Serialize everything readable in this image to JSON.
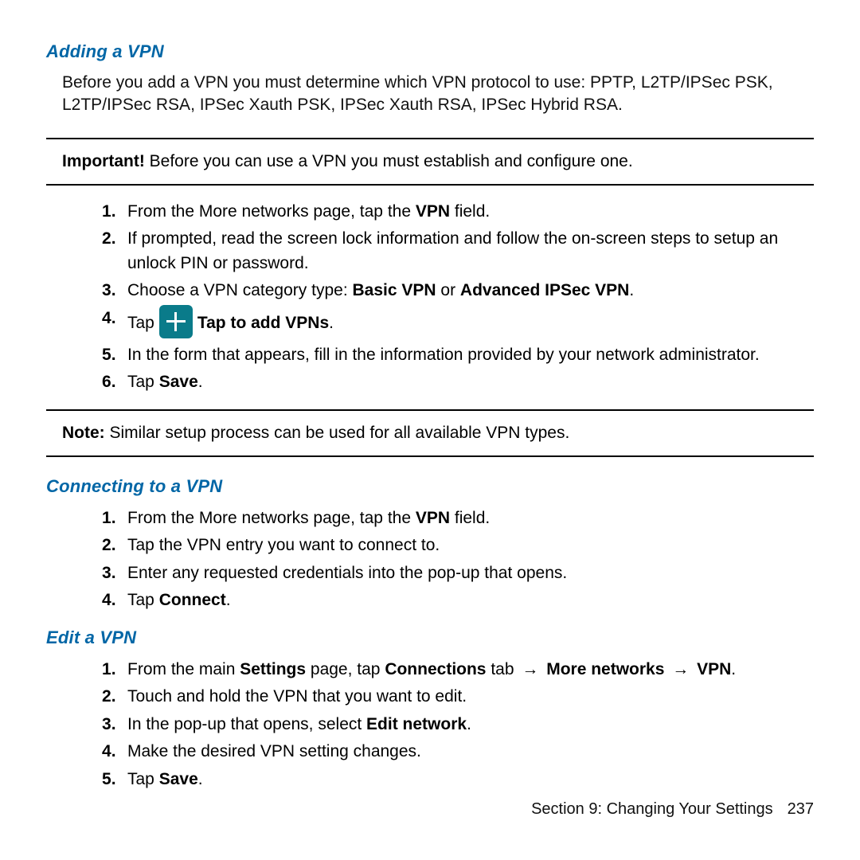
{
  "colors": {
    "heading": "#0066a6",
    "iconBg": "#0a7b8a",
    "iconFg": "#ffffff",
    "text": "#000000",
    "rule": "#000000"
  },
  "typography": {
    "headingSize": 22,
    "bodySize": 21,
    "footerSize": 20,
    "fontFamily": "Arial"
  },
  "adding": {
    "heading": "Adding a VPN",
    "intro": "Before you add a VPN you must determine which VPN protocol to use: PPTP, L2TP/IPSec PSK, L2TP/IPSec RSA, IPSec Xauth PSK, IPSec Xauth RSA, IPSec Hybrid RSA.",
    "importantLabel": "Important!",
    "importantText": " Before you can use a VPN you must establish and configure one.",
    "steps": {
      "s1_a": "From the More networks page, tap the ",
      "s1_b": "VPN",
      "s1_c": " field.",
      "s2": "If prompted, read the screen lock information and follow the on-screen steps to setup an unlock PIN or password.",
      "s3_a": "Choose a VPN category type: ",
      "s3_b": "Basic VPN",
      "s3_c": " or ",
      "s3_d": "Advanced IPSec VPN",
      "s3_e": ".",
      "s4_a": "Tap ",
      "s4_label": "Tap to add VPNs",
      "s4_b": ".",
      "s5": "In the form that appears, fill in the information provided by your network administrator.",
      "s6_a": "Tap ",
      "s6_b": "Save",
      "s6_c": "."
    },
    "noteLabel": "Note:",
    "noteText": " Similar setup process can be used for all available VPN types."
  },
  "connecting": {
    "heading": "Connecting to a VPN",
    "s1_a": "From the More networks page, tap the ",
    "s1_b": "VPN",
    "s1_c": " field.",
    "s2": "Tap the VPN entry you want to connect to.",
    "s3": "Enter any requested credentials into the pop-up that opens.",
    "s4_a": "Tap ",
    "s4_b": "Connect",
    "s4_c": "."
  },
  "edit": {
    "heading": "Edit a VPN",
    "s1_a": "From the main ",
    "s1_b": "Settings",
    "s1_c": " page, tap ",
    "s1_d": "Connections",
    "s1_e": " tab ",
    "arrow": "→",
    "s1_f": "More networks",
    "s1_g": "VPN",
    "s1_h": ".",
    "s2": "Touch and hold the VPN that you want to edit.",
    "s3_a": "In the pop-up that opens, select ",
    "s3_b": "Edit network",
    "s3_c": ".",
    "s4": "Make the desired VPN setting changes.",
    "s5_a": "Tap ",
    "s5_b": "Save",
    "s5_c": "."
  },
  "footer": {
    "section": "Section 9:  Changing Your Settings",
    "page": "237"
  }
}
